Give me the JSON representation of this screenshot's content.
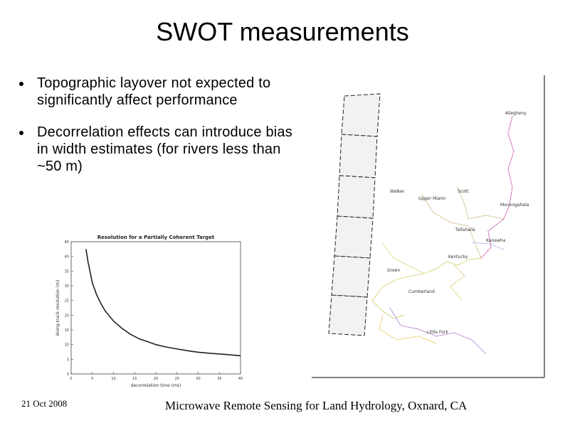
{
  "slide": {
    "title": "SWOT measurements",
    "bullets": [
      "Topographic layover not expected to significantly affect performance",
      "Decorrelation effects can introduce bias in width estimates (for rivers less than ~50 m)"
    ],
    "footer_date": "21 Oct 2008",
    "footer_conference": "Microwave Remote Sensing for Land Hydrology, Oxnard, CA"
  },
  "map": {
    "labels": [
      "Allegheny",
      "Walker",
      "Upper Miami",
      "Scott",
      "Monongahela",
      "Tallahalla",
      "Kanawha",
      "Kentucky",
      "Green",
      "Cumberland",
      "Little Fork"
    ]
  },
  "chart_data": {
    "type": "line",
    "title": "Resolution for a Partially Coherent Target",
    "xlabel": "decorrelation time (ms)",
    "ylabel": "Along-track resolution (m)",
    "xlim": [
      0,
      40
    ],
    "ylim": [
      0,
      45
    ],
    "xticks": [
      0,
      5,
      10,
      15,
      20,
      25,
      30,
      35,
      40
    ],
    "yticks": [
      0,
      5,
      10,
      15,
      20,
      25,
      30,
      35,
      40,
      45
    ],
    "grid": false,
    "series": [
      {
        "x": [
          3.5,
          4,
          5,
          6,
          7,
          8,
          10,
          12,
          14,
          16,
          18,
          20,
          22,
          25,
          28,
          30,
          33,
          36,
          40
        ],
        "values": [
          42.5,
          38,
          31,
          27,
          24,
          21.5,
          18,
          15.5,
          13.5,
          12,
          11,
          10,
          9.3,
          8.5,
          7.8,
          7.4,
          7,
          6.7,
          6.2
        ]
      }
    ],
    "line_color": "#222222"
  }
}
